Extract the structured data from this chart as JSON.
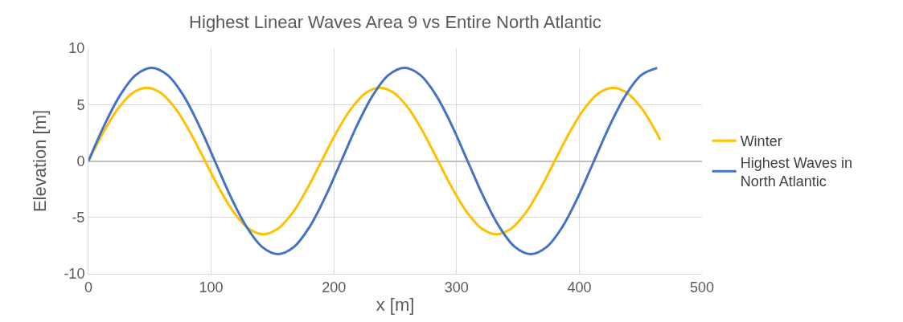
{
  "chart_data": {
    "type": "line",
    "title": "Highest Linear Waves Area 9 vs Entire North Atlantic",
    "xlabel": "x [m]",
    "ylabel": "Elevation [m]",
    "xlim": [
      0,
      500
    ],
    "xticks": [
      0,
      100,
      200,
      300,
      400,
      500
    ],
    "ylim": [
      -10,
      10
    ],
    "yticks": [
      -10,
      -5,
      0,
      5,
      10
    ],
    "grid": true,
    "legend": "right",
    "marker": "none",
    "line_style": "solid",
    "series": [
      {
        "name": "Winter",
        "color": "#ffc000",
        "x": [
          0,
          11.9,
          23.8,
          35.6,
          47.5,
          59.4,
          71.3,
          83.1,
          95,
          106.9,
          118.8,
          130.6,
          142.5,
          154.4,
          166.3,
          178.1,
          190,
          201.9,
          213.8,
          225.6,
          237.5,
          249.4,
          261.3,
          273.1,
          285,
          296.9,
          308.8,
          320.6,
          332.5,
          344.4,
          356.3,
          368.1,
          380,
          391.9,
          403.8,
          415.6,
          427.5,
          439.4,
          451.3,
          463.1,
          466
        ],
        "values": [
          0,
          2.49,
          4.6,
          6.0,
          6.5,
          6.0,
          4.6,
          2.49,
          0,
          -2.49,
          -4.6,
          -6.0,
          -6.5,
          -6.0,
          -4.6,
          -2.49,
          0,
          2.49,
          4.6,
          6.0,
          6.5,
          6.0,
          4.6,
          2.49,
          0,
          -2.49,
          -4.6,
          -6.0,
          -6.5,
          -6.0,
          -4.6,
          -2.49,
          0,
          2.49,
          4.6,
          6.0,
          6.5,
          6.0,
          4.6,
          2.49,
          1.86
        ]
      },
      {
        "name": "Highest Waves in North Atlantic",
        "color": "#4472c4",
        "x": [
          0,
          12.9,
          25.8,
          38.6,
          51.5,
          64.4,
          77.3,
          90.1,
          103,
          115.9,
          128.8,
          141.6,
          154.5,
          167.4,
          180.3,
          193.1,
          206,
          218.9,
          231.8,
          244.6,
          257.5,
          270.4,
          283.3,
          296.1,
          309,
          321.9,
          334.8,
          347.6,
          360.5,
          373.4,
          386.3,
          399.1,
          412,
          424.9,
          437.8,
          450.6,
          463.5
        ],
        "values": [
          0,
          3.16,
          5.83,
          7.62,
          8.25,
          7.62,
          5.83,
          3.16,
          0,
          -3.16,
          -5.83,
          -7.62,
          -8.25,
          -7.62,
          -5.83,
          -3.16,
          0,
          3.16,
          5.83,
          7.62,
          8.25,
          7.62,
          5.83,
          3.16,
          0,
          -3.16,
          -5.83,
          -7.62,
          -8.25,
          -7.62,
          -5.83,
          -3.16,
          0,
          3.16,
          5.83,
          7.62,
          8.25
        ]
      }
    ]
  }
}
